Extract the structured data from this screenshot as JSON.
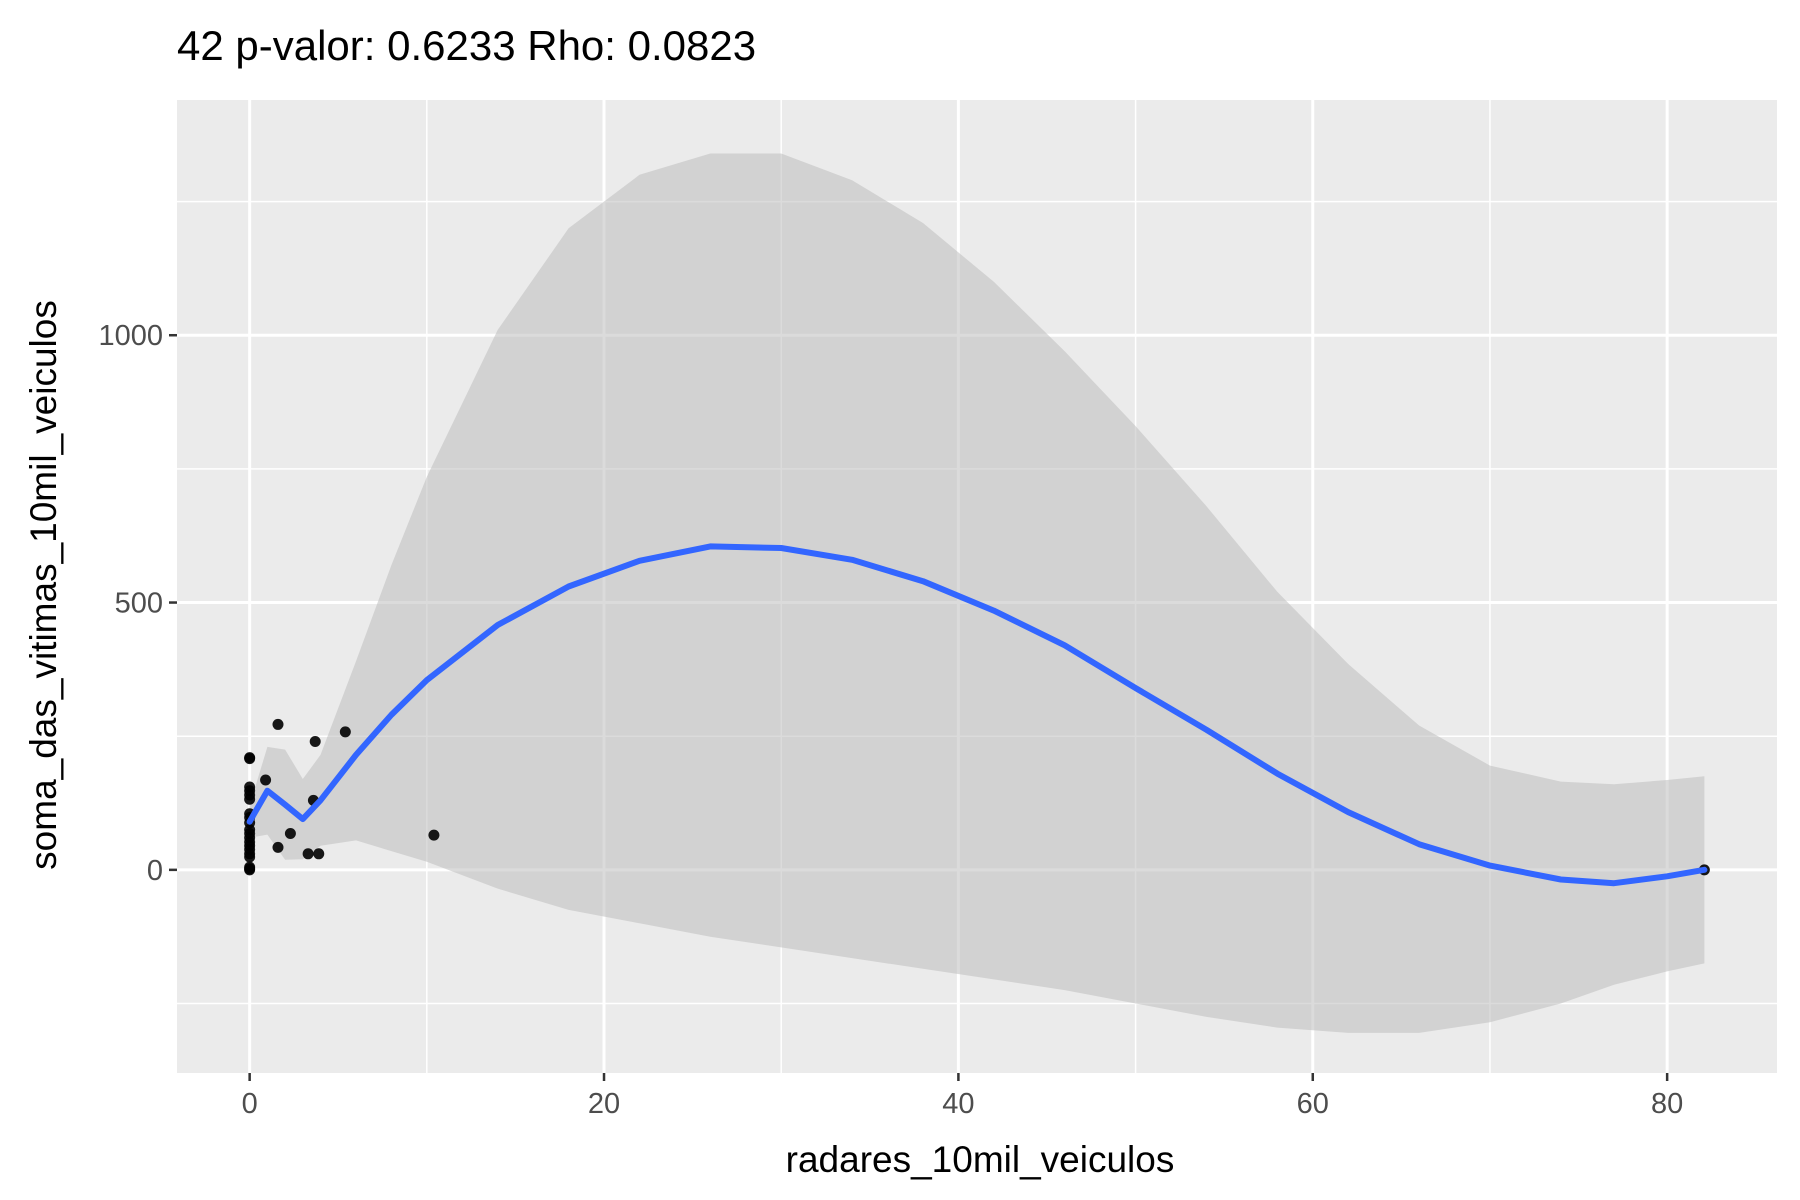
{
  "chart_data": {
    "type": "scatter",
    "title": "42 p-valor: 0.6233 Rho: 0.0823",
    "xlabel": "radares_10mil_veiculos",
    "ylabel": "soma_das_vitimas_10mil_veiculos",
    "xlim": [
      -4.1,
      86.2
    ],
    "ylim": [
      -380,
      1440
    ],
    "x_ticks": [
      0,
      20,
      40,
      60,
      80
    ],
    "y_ticks": [
      0,
      500,
      1000
    ],
    "x_minor": [
      10,
      30,
      50,
      70
    ],
    "y_minor": [
      -250,
      250,
      750,
      1250
    ],
    "grid": true,
    "legend": "none",
    "colors": {
      "panel": "#ebebeb",
      "grid": "#ffffff",
      "points": "#000000",
      "smooth_line": "#3366ff",
      "ribbon": "#bdbdbd"
    },
    "points": [
      {
        "x": 0,
        "y": 210
      },
      {
        "x": 0,
        "y": 208
      },
      {
        "x": 0,
        "y": 155
      },
      {
        "x": 0,
        "y": 148
      },
      {
        "x": 0,
        "y": 140
      },
      {
        "x": 0,
        "y": 132
      },
      {
        "x": 0,
        "y": 105
      },
      {
        "x": 0,
        "y": 98
      },
      {
        "x": 0,
        "y": 88
      },
      {
        "x": 0,
        "y": 75
      },
      {
        "x": 0,
        "y": 68
      },
      {
        "x": 0,
        "y": 60
      },
      {
        "x": 0,
        "y": 52
      },
      {
        "x": 0,
        "y": 45
      },
      {
        "x": 0,
        "y": 38
      },
      {
        "x": 0,
        "y": 30
      },
      {
        "x": 0,
        "y": 24
      },
      {
        "x": 0,
        "y": 5
      },
      {
        "x": 0,
        "y": 2
      },
      {
        "x": 0,
        "y": 0
      },
      {
        "x": 0.9,
        "y": 168
      },
      {
        "x": 1.6,
        "y": 272
      },
      {
        "x": 1.6,
        "y": 42
      },
      {
        "x": 2.3,
        "y": 68
      },
      {
        "x": 3.3,
        "y": 30
      },
      {
        "x": 3.6,
        "y": 130
      },
      {
        "x": 3.7,
        "y": 240
      },
      {
        "x": 3.9,
        "y": 30
      },
      {
        "x": 5.4,
        "y": 258
      },
      {
        "x": 10.4,
        "y": 65
      },
      {
        "x": 82.1,
        "y": 0
      }
    ],
    "smooth": {
      "x": [
        0,
        1,
        2,
        3,
        4,
        6,
        8,
        10,
        14,
        18,
        22,
        26,
        30,
        34,
        38,
        42,
        46,
        50,
        54,
        58,
        62,
        66,
        70,
        74,
        77,
        80,
        82.1
      ],
      "y": [
        90,
        148,
        122,
        95,
        130,
        215,
        290,
        355,
        458,
        530,
        578,
        605,
        602,
        580,
        540,
        485,
        420,
        340,
        262,
        180,
        108,
        48,
        8,
        -18,
        -25,
        -12,
        0
      ],
      "upper": [
        120,
        230,
        225,
        170,
        215,
        390,
        570,
        735,
        1010,
        1200,
        1300,
        1340,
        1340,
        1290,
        1210,
        1100,
        970,
        830,
        680,
        520,
        385,
        270,
        195,
        165,
        160,
        168,
        175
      ],
      "lower": [
        60,
        66,
        19,
        20,
        45,
        55,
        35,
        15,
        -35,
        -75,
        -100,
        -125,
        -145,
        -165,
        -185,
        -205,
        -225,
        -250,
        -275,
        -295,
        -305,
        -305,
        -285,
        -250,
        -215,
        -190,
        -175
      ]
    }
  }
}
